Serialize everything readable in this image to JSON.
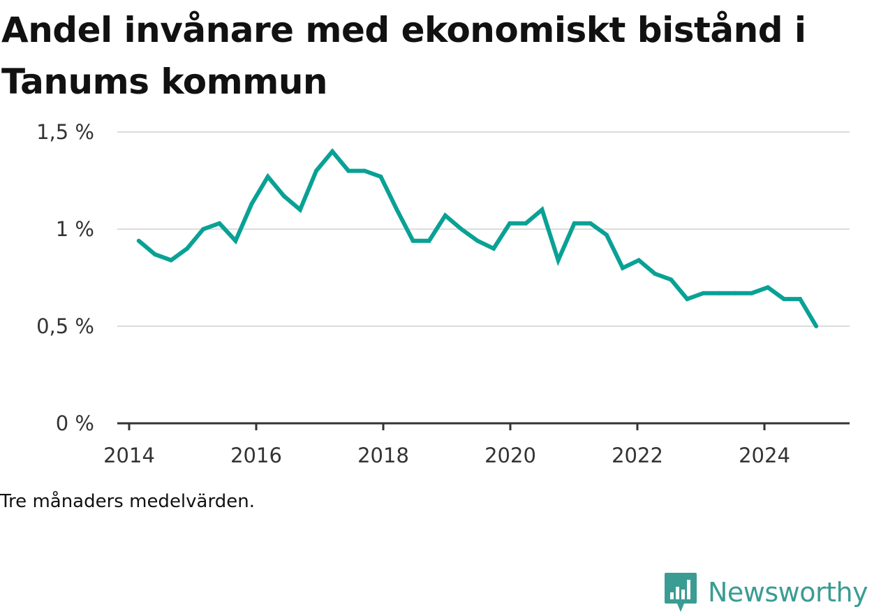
{
  "title": "Andel invånare med ekonomiskt bistånd i Tanums kommun",
  "note": "Tre månaders medelvärden.",
  "brand": {
    "name": "Newsworthy",
    "icon": "bar-chart-icon"
  },
  "colors": {
    "line": "#0aa195",
    "grid": "#dcdcdc",
    "axis": "#333333",
    "brand": "#3a9c93"
  },
  "chart_data": {
    "type": "line",
    "title": "Andel invånare med ekonomiskt bistånd i Tanums kommun",
    "xlabel": "",
    "ylabel": "",
    "x_ticks": [
      "2014",
      "2016",
      "2018",
      "2020",
      "2022",
      "2024"
    ],
    "y_ticks": [
      "0 %",
      "0,5 %",
      "1 %",
      "1,5 %"
    ],
    "ylim": [
      0,
      1.5
    ],
    "xlim": [
      2014,
      2025.35
    ],
    "grid": true,
    "legend": "none",
    "series": [
      {
        "x": [
          "2014-05",
          "2014-08",
          "2014-11",
          "2015-02",
          "2015-05",
          "2015-08",
          "2015-11",
          "2016-02",
          "2016-05",
          "2016-08",
          "2016-11",
          "2017-02",
          "2017-05",
          "2017-08",
          "2017-11",
          "2018-02",
          "2018-05",
          "2018-08",
          "2018-11",
          "2019-02",
          "2019-05",
          "2019-08",
          "2019-11",
          "2020-02",
          "2020-05",
          "2020-08",
          "2020-11",
          "2021-02",
          "2021-05",
          "2021-08",
          "2021-11",
          "2022-02",
          "2022-05",
          "2022-08",
          "2022-11",
          "2023-02",
          "2023-05",
          "2023-08",
          "2023-11",
          "2024-02",
          "2024-05",
          "2024-08",
          "2024-11"
        ],
        "values": [
          0.94,
          0.87,
          0.84,
          0.9,
          1.0,
          1.03,
          0.94,
          1.13,
          1.27,
          1.17,
          1.1,
          1.3,
          1.4,
          1.3,
          1.3,
          1.27,
          1.1,
          0.94,
          0.94,
          1.07,
          1.0,
          0.94,
          0.9,
          1.03,
          1.03,
          1.1,
          0.84,
          1.03,
          1.03,
          0.97,
          0.8,
          0.84,
          0.77,
          0.74,
          0.64,
          0.67,
          0.67,
          0.67,
          0.67,
          0.7,
          0.64,
          0.64,
          0.5
        ]
      }
    ]
  }
}
